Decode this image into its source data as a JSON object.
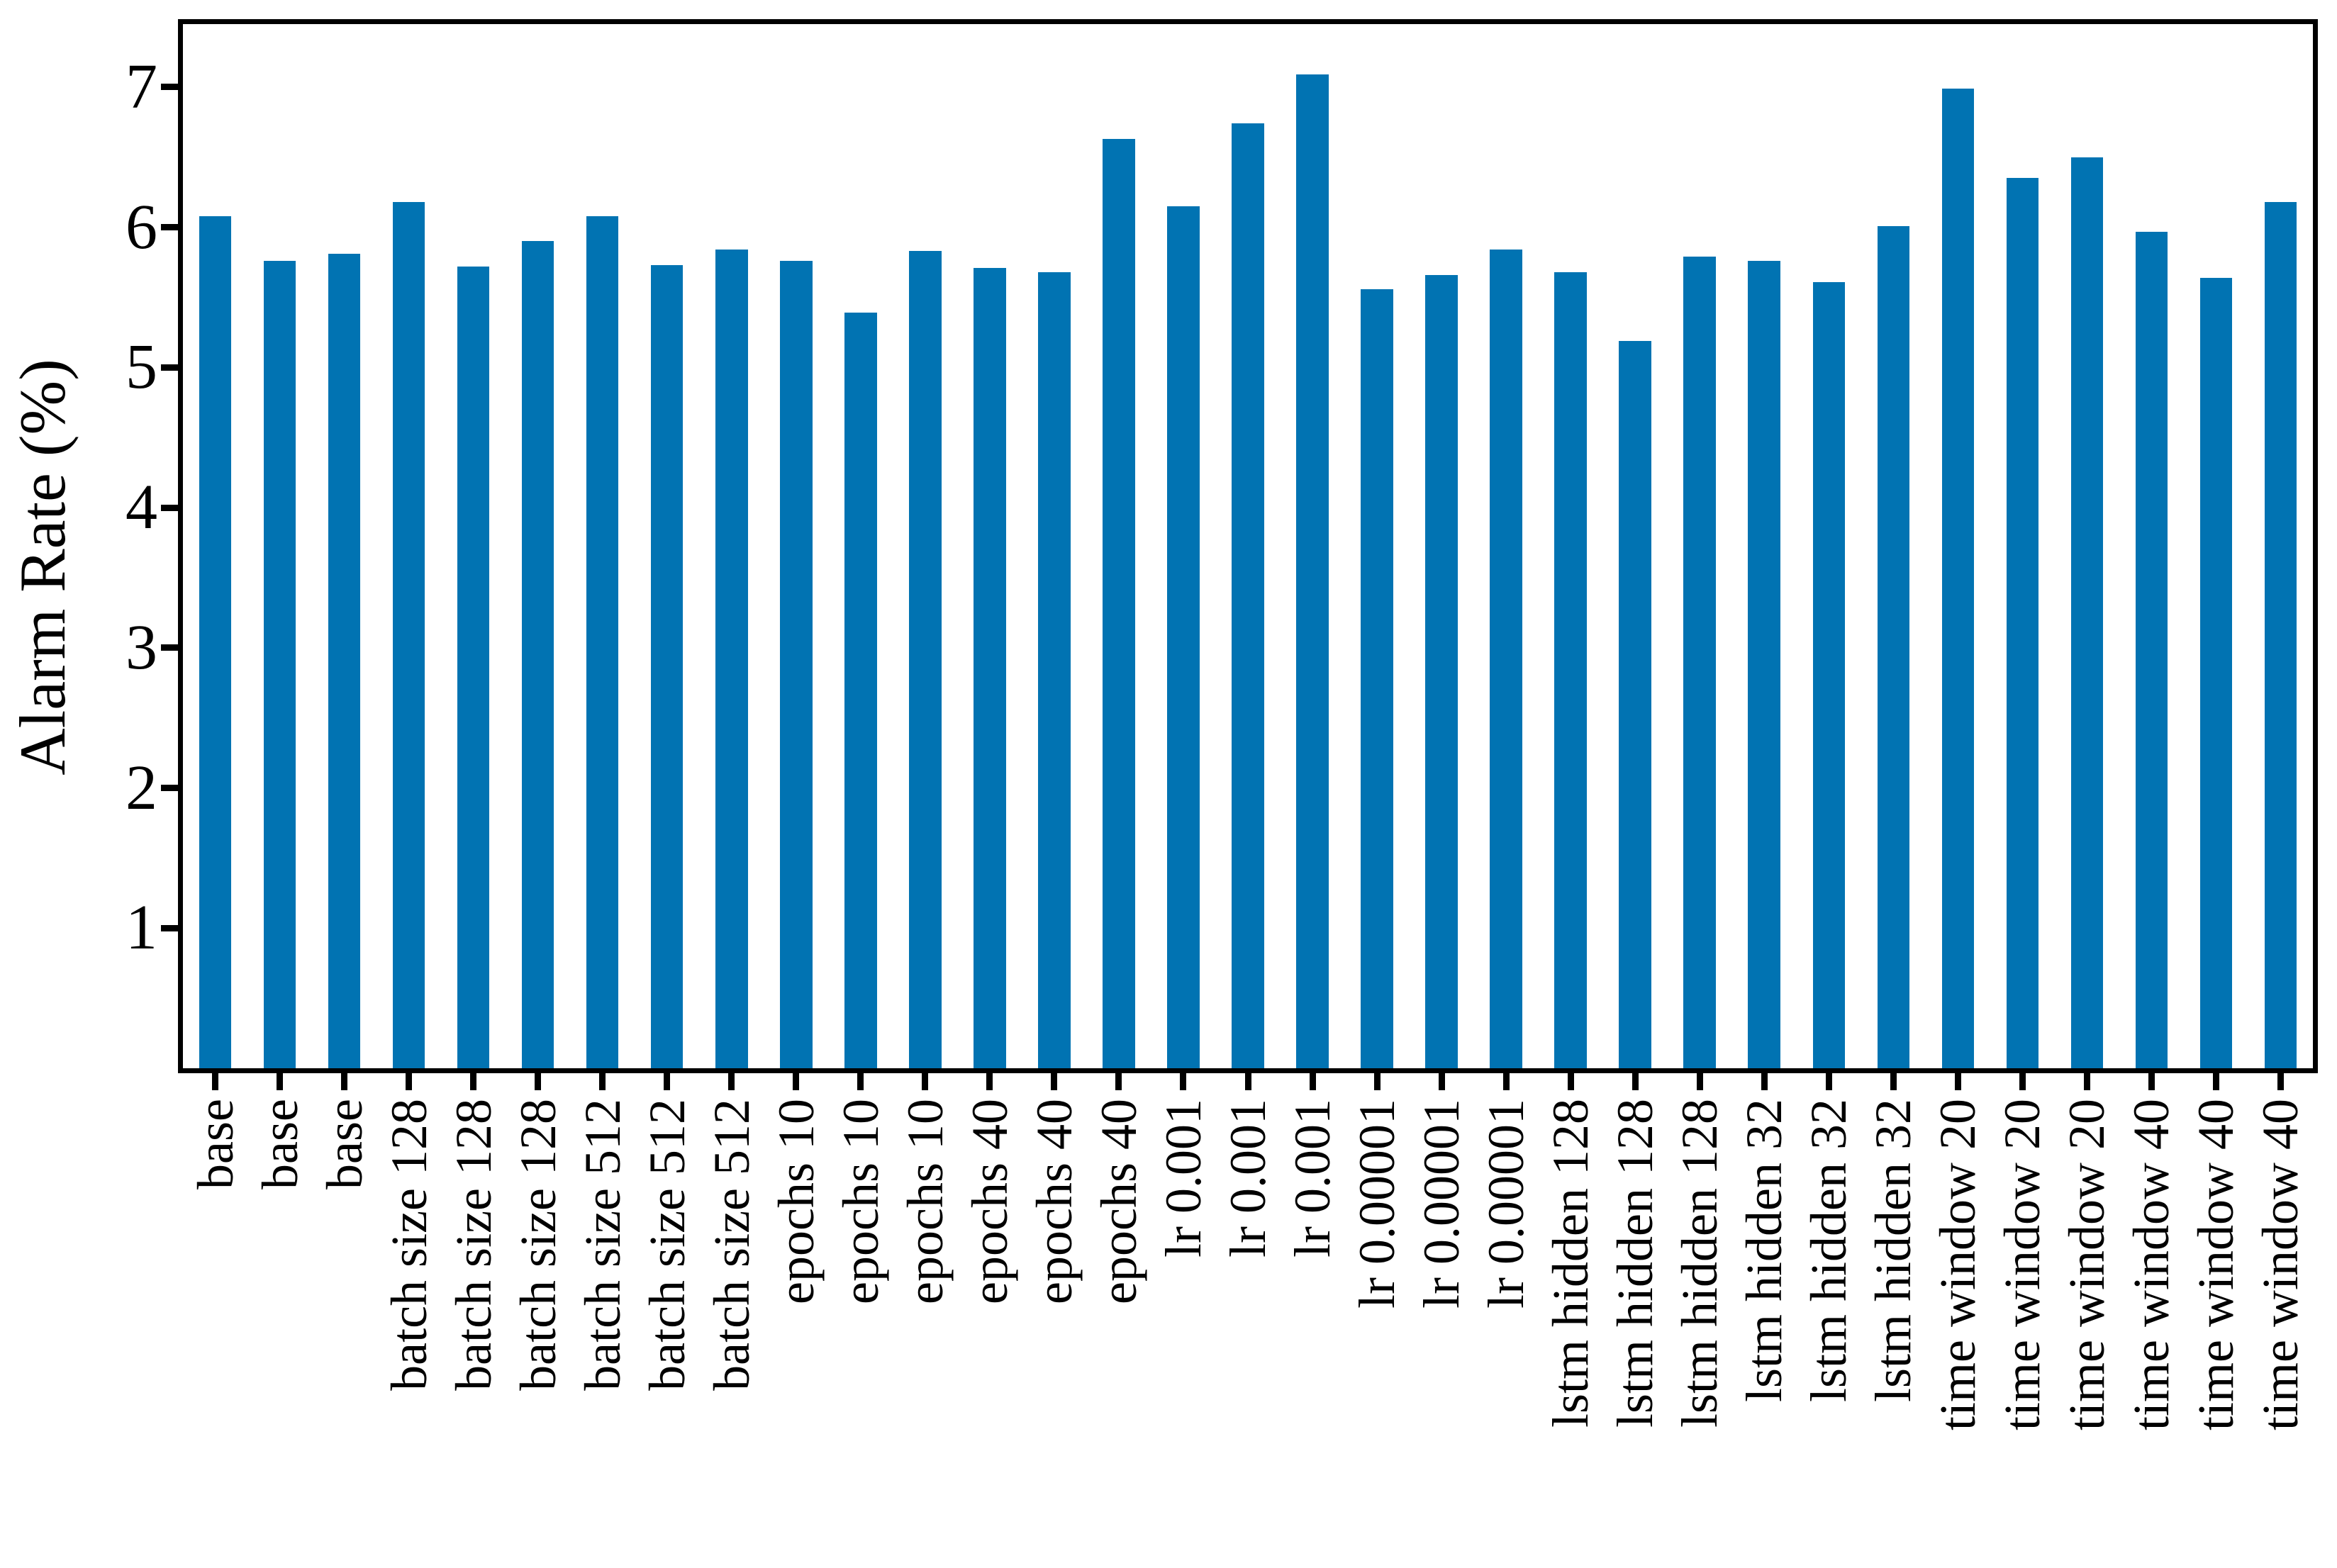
{
  "chart_data": {
    "type": "bar",
    "title": "",
    "xlabel": "",
    "ylabel": "Alarm Rate (%)",
    "categories": [
      "base",
      "base",
      "base",
      "batch size 128",
      "batch size 128",
      "batch size 128",
      "batch size 512",
      "batch size 512",
      "batch size 512",
      "epochs 10",
      "epochs 10",
      "epochs 10",
      "epochs 40",
      "epochs 40",
      "epochs 40",
      "lr 0.001",
      "lr 0.001",
      "lr 0.001",
      "lr 0.00001",
      "lr 0.00001",
      "lr 0.00001",
      "lstm hidden 128",
      "lstm hidden 128",
      "lstm hidden 128",
      "lstm hidden 32",
      "lstm hidden 32",
      "lstm hidden 32",
      "time window 20",
      "time window 20",
      "time window 20",
      "time window 40",
      "time window 40",
      "time window 40"
    ],
    "values": [
      6.08,
      5.76,
      5.81,
      6.18,
      5.72,
      5.9,
      6.08,
      5.73,
      5.84,
      5.76,
      5.39,
      5.83,
      5.71,
      5.68,
      6.63,
      6.15,
      6.74,
      7.09,
      5.56,
      5.66,
      5.84,
      5.68,
      5.19,
      5.79,
      5.76,
      5.61,
      6.01,
      6.99,
      6.35,
      6.5,
      5.97,
      5.64,
      6.18
    ],
    "yticks": [
      1,
      2,
      3,
      4,
      5,
      6,
      7
    ],
    "ylim": [
      0,
      7.45
    ],
    "bar_color": "#0173b2",
    "bar_width_fraction": 0.5,
    "axis_color": "#000000",
    "background": "#ffffff",
    "grid": "off",
    "legend": "none"
  }
}
